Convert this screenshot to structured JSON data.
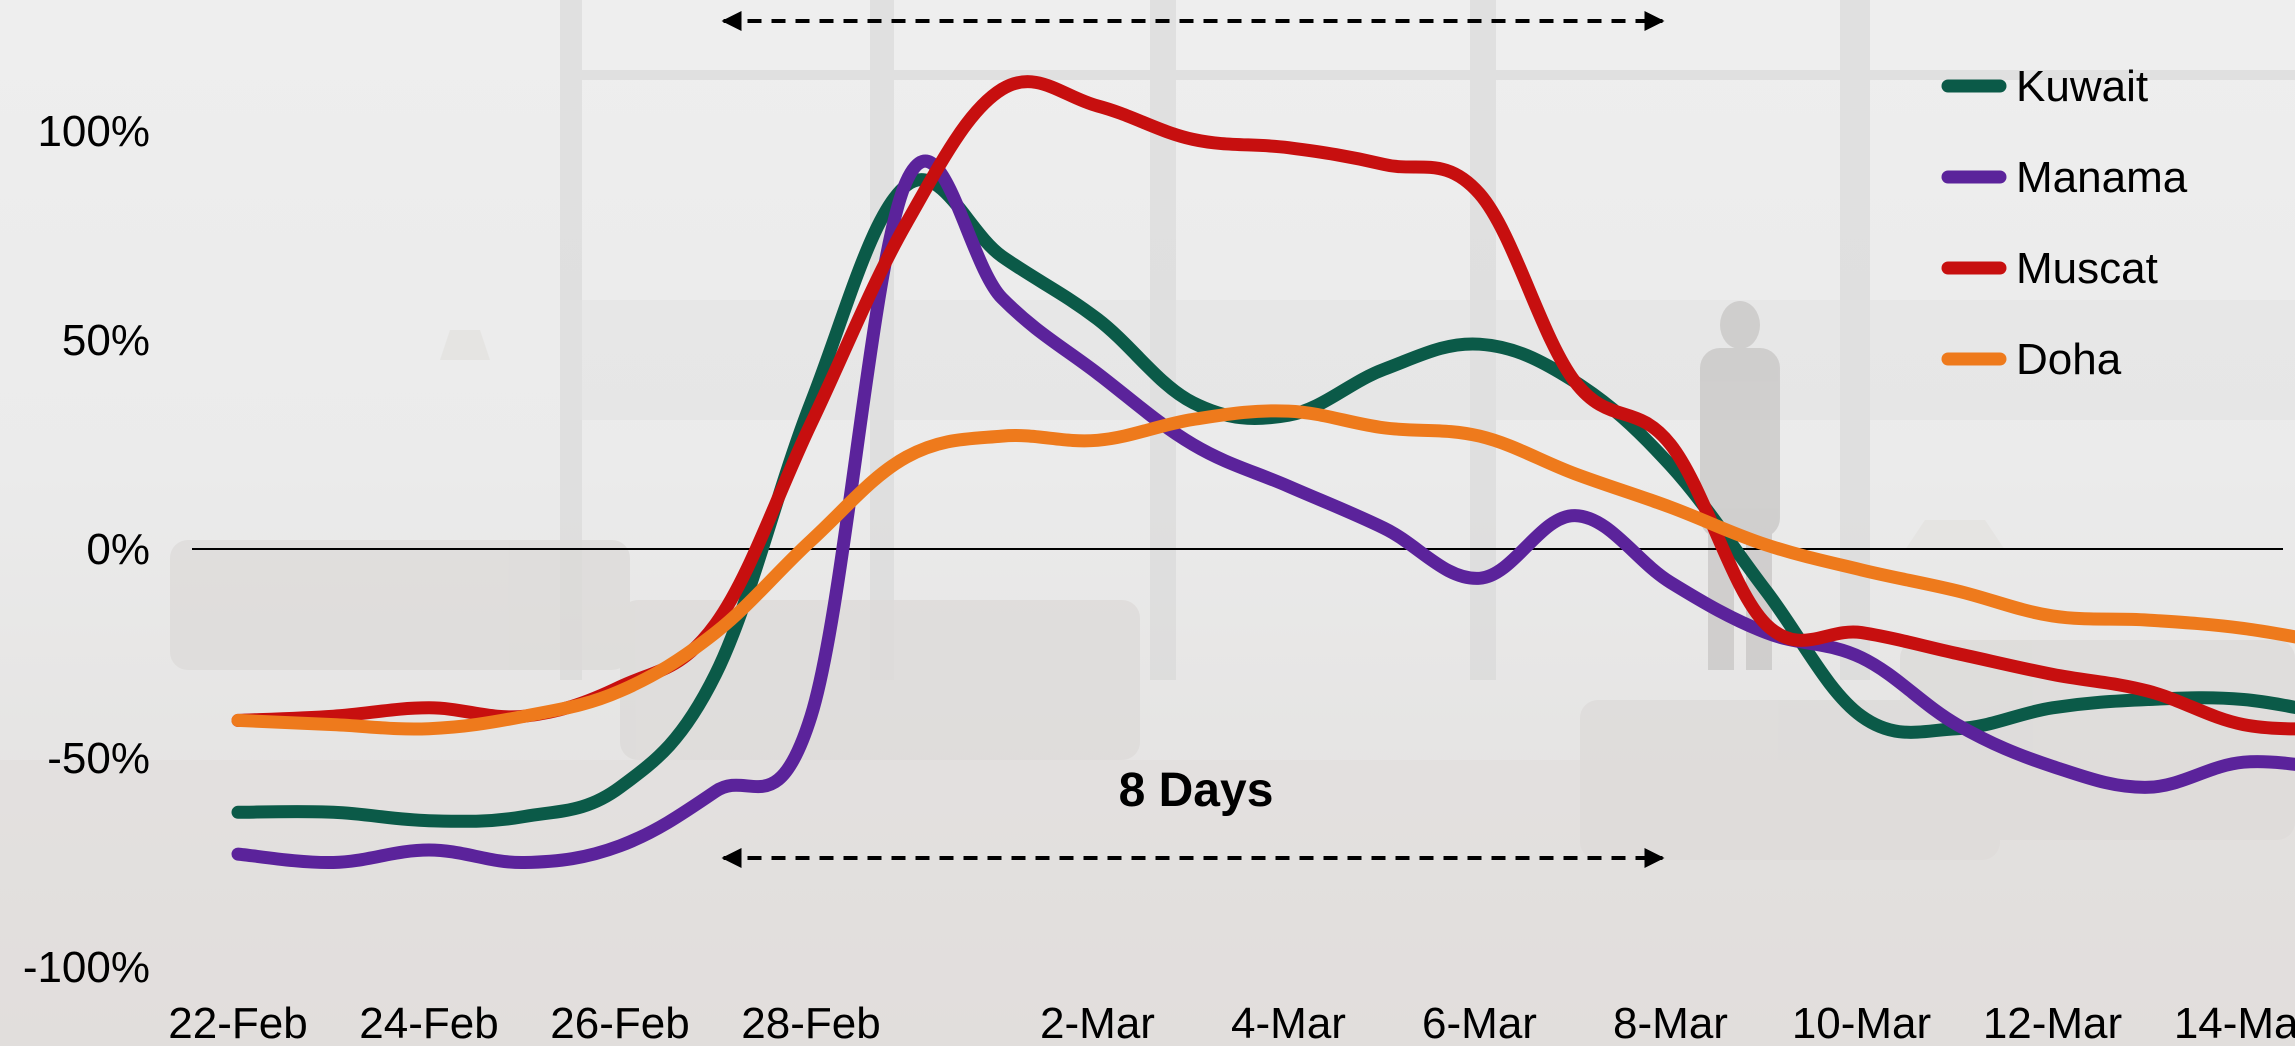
{
  "chart_data": {
    "type": "line",
    "title": "",
    "xlabel": "",
    "ylabel": "",
    "x": [
      "22-Feb",
      "23-Feb",
      "24-Feb",
      "25-Feb",
      "26-Feb",
      "27-Feb",
      "28-Feb",
      "29-Feb",
      "1-Mar",
      "2-Mar",
      "3-Mar",
      "4-Mar",
      "5-Mar",
      "6-Mar",
      "7-Mar",
      "8-Mar",
      "9-Mar",
      "10-Mar",
      "11-Mar",
      "12-Mar",
      "13-Mar",
      "14-Mar",
      "15-Mar"
    ],
    "xtick_labels": [
      "22-Feb",
      "24-Feb",
      "26-Feb",
      "28-Feb",
      "2-Mar",
      "4-Mar",
      "6-Mar",
      "8-Mar",
      "10-Mar",
      "12-Mar",
      "14-Mar"
    ],
    "ylim": [
      -100,
      110
    ],
    "yticks": [
      100,
      50,
      0,
      -50,
      -100
    ],
    "ytick_labels": [
      "100%",
      "50%",
      "0%",
      "-50%",
      "-100%"
    ],
    "grid": false,
    "legend_position": "top-right",
    "series": [
      {
        "name": "Kuwait",
        "color": "#0b5a48",
        "values": [
          -63,
          -63,
          -65,
          -64,
          -57,
          -30,
          35,
          87,
          70,
          55,
          35,
          32,
          43,
          49,
          40,
          20,
          -10,
          -40,
          -43,
          -38,
          -36,
          -36,
          -40
        ]
      },
      {
        "name": "Manama",
        "color": "#5b239b",
        "values": [
          -73,
          -75,
          -72,
          -75,
          -71,
          -58,
          -40,
          88,
          60,
          42,
          25,
          15,
          5,
          -7,
          8,
          -8,
          -20,
          -26,
          -42,
          -52,
          -57,
          -51,
          -53
        ]
      },
      {
        "name": "Muscat",
        "color": "#c70f0f",
        "values": [
          -41,
          -40,
          -38,
          -40,
          -33,
          -18,
          30,
          78,
          110,
          106,
          98,
          96,
          92,
          85,
          40,
          25,
          -18,
          -20,
          -25,
          -30,
          -34,
          -42,
          -43
        ]
      },
      {
        "name": "Doha",
        "color": "#ee7a1c",
        "values": [
          -41,
          -42,
          -43,
          -40,
          -34,
          -20,
          2,
          22,
          27,
          26,
          31,
          33,
          29,
          27,
          18,
          10,
          1,
          -5,
          -10,
          -16,
          -17,
          -19,
          -23
        ]
      }
    ],
    "annotation": {
      "text": "8 Days",
      "from": "27-Feb",
      "to": "8-Mar"
    }
  }
}
